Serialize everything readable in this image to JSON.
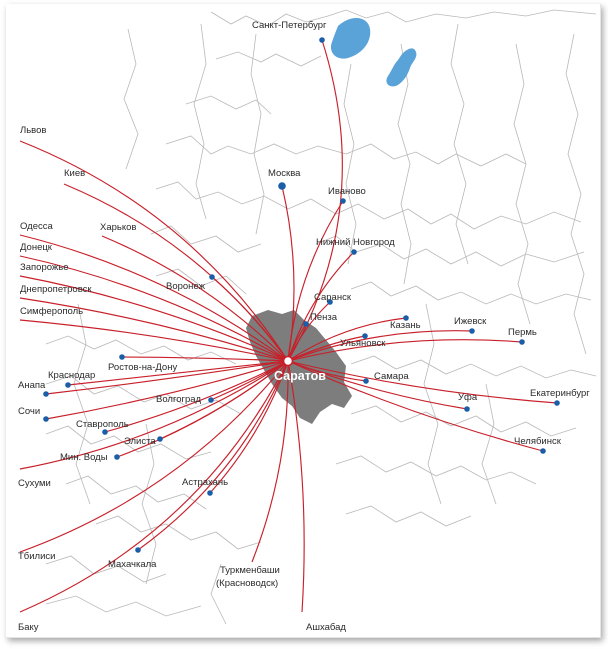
{
  "map": {
    "hub": {
      "name": "Саратов"
    },
    "colors": {
      "route": "#c8202a",
      "city_dot": "#1b5ea8",
      "hub_region": "#7d7d7d",
      "water": "#5aa3d8",
      "border": "#b9b9b9"
    },
    "destinations": [
      {
        "id": "spb",
        "name": "Санкт-Петербург"
      },
      {
        "id": "moscow",
        "name": "Москва"
      },
      {
        "id": "ivanovo",
        "name": "Иваново"
      },
      {
        "id": "nnovgorod",
        "name": "Нижний Новгород"
      },
      {
        "id": "lvov",
        "name": "Львов"
      },
      {
        "id": "kiev",
        "name": "Киев"
      },
      {
        "id": "odessa",
        "name": "Одесса"
      },
      {
        "id": "kharkov",
        "name": "Харьков"
      },
      {
        "id": "donetsk",
        "name": "Донецк"
      },
      {
        "id": "zaporozhye",
        "name": "Запорожье"
      },
      {
        "id": "dnepr",
        "name": "Днепропетровск"
      },
      {
        "id": "voronezh",
        "name": "Воронеж"
      },
      {
        "id": "simferopol",
        "name": "Симферополь"
      },
      {
        "id": "saransk",
        "name": "Саранск"
      },
      {
        "id": "penza",
        "name": "Пенза"
      },
      {
        "id": "kazan",
        "name": "Казань"
      },
      {
        "id": "izhevsk",
        "name": "Ижевск"
      },
      {
        "id": "perm",
        "name": "Пермь"
      },
      {
        "id": "ulyanovsk",
        "name": "Ульяновск"
      },
      {
        "id": "samara",
        "name": "Самара"
      },
      {
        "id": "ufa",
        "name": "Уфа"
      },
      {
        "id": "ekb",
        "name": "Екатеринбург"
      },
      {
        "id": "chelyabinsk",
        "name": "Челябинск"
      },
      {
        "id": "rostov",
        "name": "Ростов-на-Дону"
      },
      {
        "id": "krasnodar",
        "name": "Краснодар"
      },
      {
        "id": "anapa",
        "name": "Анапа"
      },
      {
        "id": "sochi",
        "name": "Сочи"
      },
      {
        "id": "volgograd",
        "name": "Волгоград"
      },
      {
        "id": "stavropol",
        "name": "Ставрополь"
      },
      {
        "id": "elista",
        "name": "Элиста"
      },
      {
        "id": "minvody",
        "name": "Мин. Воды"
      },
      {
        "id": "sukhumi",
        "name": "Сухуми"
      },
      {
        "id": "astrakhan",
        "name": "Астрахань"
      },
      {
        "id": "tbilisi",
        "name": "Tбилиси"
      },
      {
        "id": "makhachkala",
        "name": "Махачкала"
      },
      {
        "id": "turkmenbashi",
        "name": "Туркменбаши"
      },
      {
        "id": "krasnovodsk",
        "name": "(Красноводск)"
      },
      {
        "id": "baku",
        "name": "Баку"
      },
      {
        "id": "ashgabat",
        "name": "Ашхабад"
      }
    ]
  }
}
